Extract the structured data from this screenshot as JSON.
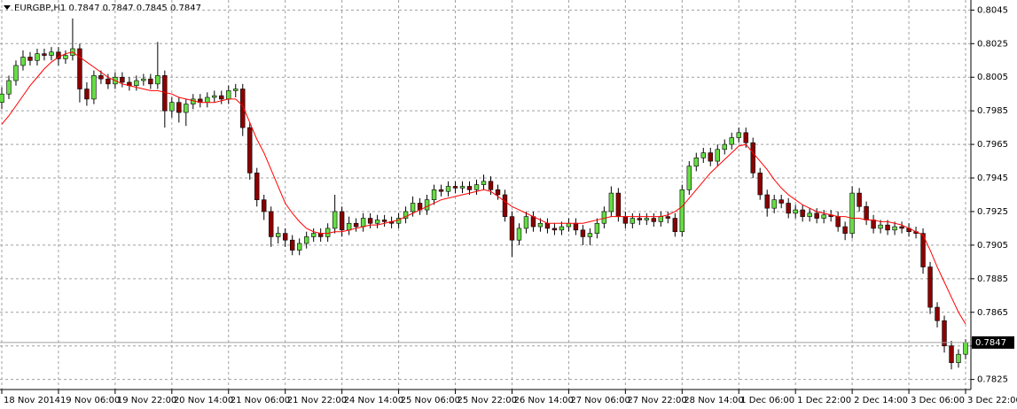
{
  "chart_data": {
    "type": "candlestick",
    "title": "EURGBP,H1  0.7847 0.7847 0.7845 0.7847",
    "bull_color": "#66dd44",
    "bear_color": "#8b0000",
    "wick_color": "#000000",
    "grid": true,
    "ylim": [
      0.7819,
      0.8051
    ],
    "yticks": [
      0.8045,
      0.8025,
      0.8005,
      0.7985,
      0.7965,
      0.7945,
      0.7925,
      0.7905,
      0.7885,
      0.7865,
      0.7845,
      0.7825
    ],
    "xlim": [
      -0.25,
      136.75
    ],
    "xticks": [
      {
        "value": 0,
        "label": "18 Nov 2014"
      },
      {
        "value": 8,
        "label": "19 Nov 06:00"
      },
      {
        "value": 16,
        "label": "19 Nov 22:00"
      },
      {
        "value": 24,
        "label": "20 Nov 14:00"
      },
      {
        "value": 32,
        "label": "21 Nov 06:00"
      },
      {
        "value": 40,
        "label": "21 Nov 22:00"
      },
      {
        "value": 48,
        "label": "24 Nov 14:00"
      },
      {
        "value": 56,
        "label": "25 Nov 06:00"
      },
      {
        "value": 64,
        "label": "25 Nov 22:00"
      },
      {
        "value": 72,
        "label": "26 Nov 14:00"
      },
      {
        "value": 80,
        "label": "27 Nov 06:00"
      },
      {
        "value": 88,
        "label": "27 Nov 22:00"
      },
      {
        "value": 96,
        "label": "28 Nov 14:00"
      },
      {
        "value": 104,
        "label": "1 Dec 06:00"
      },
      {
        "value": 112,
        "label": "1 Dec 22:00"
      },
      {
        "value": 120,
        "label": "2 Dec 14:00"
      },
      {
        "value": 128,
        "label": "3 Dec 06:00"
      },
      {
        "value": 136,
        "label": "3 Dec 22:00"
      }
    ],
    "last_price": 0.7847,
    "last_price_color": "#a0a0a0",
    "open": [
      0.799,
      0.7995,
      0.8003,
      0.8012,
      0.8017,
      0.8015,
      0.8019,
      0.8018,
      0.802,
      0.8016,
      0.8018,
      0.8022,
      0.7998,
      0.7992,
      0.8006,
      0.8004,
      0.8001,
      0.8005,
      0.8002,
      0.8,
      0.8003,
      0.8004,
      0.8001,
      0.8006,
      0.7985,
      0.799,
      0.7984,
      0.7989,
      0.7992,
      0.799,
      0.7993,
      0.7994,
      0.7992,
      0.7997,
      0.7998,
      0.7975,
      0.7948,
      0.7932,
      0.7925,
      0.791,
      0.7912,
      0.7908,
      0.7902,
      0.7906,
      0.791,
      0.7912,
      0.791,
      0.7915,
      0.7925,
      0.7914,
      0.7918,
      0.7916,
      0.7921,
      0.7918,
      0.792,
      0.7919,
      0.7918,
      0.7921,
      0.7925,
      0.793,
      0.7926,
      0.7932,
      0.7938,
      0.7937,
      0.794,
      0.7939,
      0.794,
      0.7938,
      0.7941,
      0.7943,
      0.7938,
      0.7935,
      0.7922,
      0.7908,
      0.7915,
      0.7922,
      0.7916,
      0.7918,
      0.7915,
      0.7914,
      0.7916,
      0.7918,
      0.7914,
      0.791,
      0.7912,
      0.7918,
      0.7925,
      0.7936,
      0.7922,
      0.7918,
      0.7921,
      0.792,
      0.7921,
      0.7919,
      0.7922,
      0.7921,
      0.7913,
      0.7938,
      0.7952,
      0.7957,
      0.796,
      0.7955,
      0.7962,
      0.7965,
      0.7969,
      0.7972,
      0.7966,
      0.7948,
      0.7935,
      0.7927,
      0.7932,
      0.793,
      0.7924,
      0.7926,
      0.7922,
      0.7924,
      0.7921,
      0.7923,
      0.7922,
      0.7916,
      0.7912,
      0.7936,
      0.7928,
      0.792,
      0.7915,
      0.7917,
      0.7914,
      0.7916,
      0.7915,
      0.7913,
      0.7912,
      0.7892,
      0.7868,
      0.786,
      0.7845,
      0.7835,
      0.784
    ],
    "high": [
      0.7999,
      0.8006,
      0.8015,
      0.8021,
      0.802,
      0.8022,
      0.8022,
      0.8023,
      0.8023,
      0.8021,
      0.804,
      0.8025,
      0.8002,
      0.8009,
      0.8009,
      0.8007,
      0.8008,
      0.8008,
      0.8005,
      0.8006,
      0.8007,
      0.8007,
      0.8026,
      0.8009,
      0.7993,
      0.7993,
      0.7992,
      0.7995,
      0.7995,
      0.7996,
      0.7997,
      0.7997,
      0.8,
      0.8001,
      0.8001,
      0.7978,
      0.7951,
      0.7935,
      0.7928,
      0.7916,
      0.7915,
      0.7911,
      0.7909,
      0.7913,
      0.7915,
      0.7915,
      0.7918,
      0.7935,
      0.7928,
      0.7922,
      0.7921,
      0.7924,
      0.7924,
      0.7923,
      0.7923,
      0.7922,
      0.7924,
      0.7928,
      0.7934,
      0.7933,
      0.7935,
      0.7941,
      0.7941,
      0.7943,
      0.7943,
      0.7943,
      0.7943,
      0.7944,
      0.7947,
      0.7946,
      0.7941,
      0.7938,
      0.7925,
      0.7918,
      0.7925,
      0.7925,
      0.7921,
      0.7921,
      0.7918,
      0.7919,
      0.7921,
      0.7921,
      0.7917,
      0.7915,
      0.7921,
      0.7928,
      0.794,
      0.7939,
      0.7925,
      0.7924,
      0.7924,
      0.7924,
      0.7924,
      0.7925,
      0.7925,
      0.7924,
      0.7941,
      0.7955,
      0.796,
      0.7963,
      0.7963,
      0.7965,
      0.7968,
      0.7972,
      0.7975,
      0.7975,
      0.7969,
      0.7951,
      0.7938,
      0.7935,
      0.7935,
      0.7933,
      0.7929,
      0.7929,
      0.7927,
      0.7927,
      0.7926,
      0.7926,
      0.7925,
      0.7919,
      0.794,
      0.7939,
      0.7931,
      0.7923,
      0.792,
      0.792,
      0.7919,
      0.7919,
      0.7918,
      0.7916,
      0.7915,
      0.7895,
      0.7871,
      0.7863,
      0.7848,
      0.7843,
      0.7849
    ],
    "low": [
      0.7986,
      0.7992,
      0.8,
      0.8009,
      0.8012,
      0.8012,
      0.8015,
      0.8015,
      0.8012,
      0.8013,
      0.8015,
      0.799,
      0.7988,
      0.7989,
      0.8001,
      0.7998,
      0.7998,
      0.7999,
      0.7997,
      0.7997,
      0.8,
      0.7998,
      0.7998,
      0.7975,
      0.7981,
      0.7978,
      0.7976,
      0.7986,
      0.7987,
      0.7987,
      0.799,
      0.7989,
      0.7989,
      0.7993,
      0.797,
      0.7944,
      0.7928,
      0.792,
      0.7904,
      0.7906,
      0.7904,
      0.7899,
      0.7899,
      0.7903,
      0.7907,
      0.7907,
      0.7907,
      0.7912,
      0.791,
      0.7911,
      0.7913,
      0.7913,
      0.7915,
      0.7915,
      0.7916,
      0.7915,
      0.7915,
      0.7918,
      0.7922,
      0.7923,
      0.7923,
      0.7929,
      0.7934,
      0.7934,
      0.7936,
      0.7936,
      0.7935,
      0.7935,
      0.7938,
      0.7935,
      0.7932,
      0.7919,
      0.7898,
      0.7905,
      0.7912,
      0.7913,
      0.7913,
      0.7912,
      0.7911,
      0.7911,
      0.7913,
      0.7911,
      0.7905,
      0.7905,
      0.7909,
      0.7915,
      0.7922,
      0.7919,
      0.7915,
      0.7915,
      0.7917,
      0.7917,
      0.7916,
      0.7916,
      0.7918,
      0.791,
      0.791,
      0.7935,
      0.7949,
      0.7954,
      0.7952,
      0.7952,
      0.7959,
      0.7962,
      0.7966,
      0.7963,
      0.7945,
      0.7932,
      0.7922,
      0.7924,
      0.7927,
      0.7921,
      0.7921,
      0.7919,
      0.7919,
      0.7918,
      0.7918,
      0.7919,
      0.7913,
      0.7908,
      0.7909,
      0.7925,
      0.7917,
      0.7912,
      0.7912,
      0.7911,
      0.7911,
      0.7912,
      0.791,
      0.7909,
      0.7888,
      0.7864,
      0.7856,
      0.7841,
      0.7831,
      0.7832,
      0.7837
    ],
    "close": [
      0.7995,
      0.8003,
      0.8012,
      0.8017,
      0.8015,
      0.8019,
      0.8018,
      0.802,
      0.8016,
      0.8018,
      0.8022,
      0.7998,
      0.7992,
      0.8006,
      0.8004,
      0.8001,
      0.8005,
      0.8002,
      0.8,
      0.8003,
      0.8004,
      0.8001,
      0.8006,
      0.7985,
      0.799,
      0.7984,
      0.7989,
      0.7992,
      0.799,
      0.7993,
      0.7994,
      0.7992,
      0.7997,
      0.7998,
      0.7975,
      0.7948,
      0.7932,
      0.7925,
      0.791,
      0.7912,
      0.7908,
      0.7902,
      0.7906,
      0.791,
      0.7912,
      0.791,
      0.7915,
      0.7925,
      0.7914,
      0.7918,
      0.7916,
      0.7921,
      0.7918,
      0.792,
      0.7919,
      0.7918,
      0.7921,
      0.7925,
      0.793,
      0.7926,
      0.7932,
      0.7938,
      0.7937,
      0.794,
      0.7939,
      0.794,
      0.7938,
      0.7941,
      0.7943,
      0.7938,
      0.7935,
      0.7922,
      0.7908,
      0.7915,
      0.7922,
      0.7916,
      0.7918,
      0.7915,
      0.7914,
      0.7916,
      0.7918,
      0.7914,
      0.791,
      0.7912,
      0.7918,
      0.7925,
      0.7936,
      0.7922,
      0.7918,
      0.7921,
      0.792,
      0.7921,
      0.7919,
      0.7922,
      0.7921,
      0.7913,
      0.7938,
      0.7952,
      0.7957,
      0.796,
      0.7955,
      0.7962,
      0.7965,
      0.7969,
      0.7972,
      0.7966,
      0.7948,
      0.7935,
      0.7927,
      0.7932,
      0.793,
      0.7924,
      0.7926,
      0.7922,
      0.7924,
      0.7921,
      0.7923,
      0.7922,
      0.7916,
      0.7912,
      0.7936,
      0.7928,
      0.792,
      0.7915,
      0.7917,
      0.7914,
      0.7916,
      0.7915,
      0.7913,
      0.7912,
      0.7892,
      0.7868,
      0.786,
      0.7845,
      0.7835,
      0.784,
      0.7847
    ],
    "ma": {
      "color": "#ff0000",
      "values": [
        0.7977,
        0.7982,
        0.7988,
        0.7994,
        0.8,
        0.8005,
        0.801,
        0.8014,
        0.8017,
        0.8019,
        0.802,
        0.8017,
        0.8014,
        0.8011,
        0.8008,
        0.8005,
        0.8003,
        0.8001,
        0.8,
        0.7999,
        0.7998,
        0.7997,
        0.7997,
        0.7996,
        0.7995,
        0.7993,
        0.7992,
        0.7991,
        0.799,
        0.799,
        0.799,
        0.7991,
        0.7992,
        0.7992,
        0.7988,
        0.7978,
        0.7968,
        0.796,
        0.795,
        0.794,
        0.793,
        0.7924,
        0.7919,
        0.7915,
        0.7913,
        0.7912,
        0.7912,
        0.7913,
        0.7913,
        0.7914,
        0.7915,
        0.7916,
        0.7917,
        0.7917,
        0.7918,
        0.7919,
        0.792,
        0.7922,
        0.7924,
        0.7926,
        0.7928,
        0.793,
        0.7932,
        0.7933,
        0.7934,
        0.7935,
        0.7936,
        0.7937,
        0.7938,
        0.7937,
        0.7934,
        0.7931,
        0.7928,
        0.7926,
        0.7924,
        0.7922,
        0.792,
        0.7918,
        0.7918,
        0.7918,
        0.7918,
        0.7918,
        0.7918,
        0.7919,
        0.792,
        0.7921,
        0.7922,
        0.7922,
        0.7922,
        0.7922,
        0.7922,
        0.7922,
        0.7922,
        0.7922,
        0.7923,
        0.7925,
        0.7928,
        0.7933,
        0.7938,
        0.7943,
        0.7948,
        0.7952,
        0.7956,
        0.796,
        0.7964,
        0.7965,
        0.796,
        0.7955,
        0.795,
        0.7944,
        0.7939,
        0.7935,
        0.7932,
        0.7929,
        0.7927,
        0.7925,
        0.7924,
        0.7923,
        0.7922,
        0.7922,
        0.7921,
        0.7921,
        0.792,
        0.792,
        0.7919,
        0.7919,
        0.7918,
        0.7917,
        0.7915,
        0.7913,
        0.7911,
        0.7902,
        0.7892,
        0.7883,
        0.7874,
        0.7865,
        0.7858
      ]
    }
  }
}
